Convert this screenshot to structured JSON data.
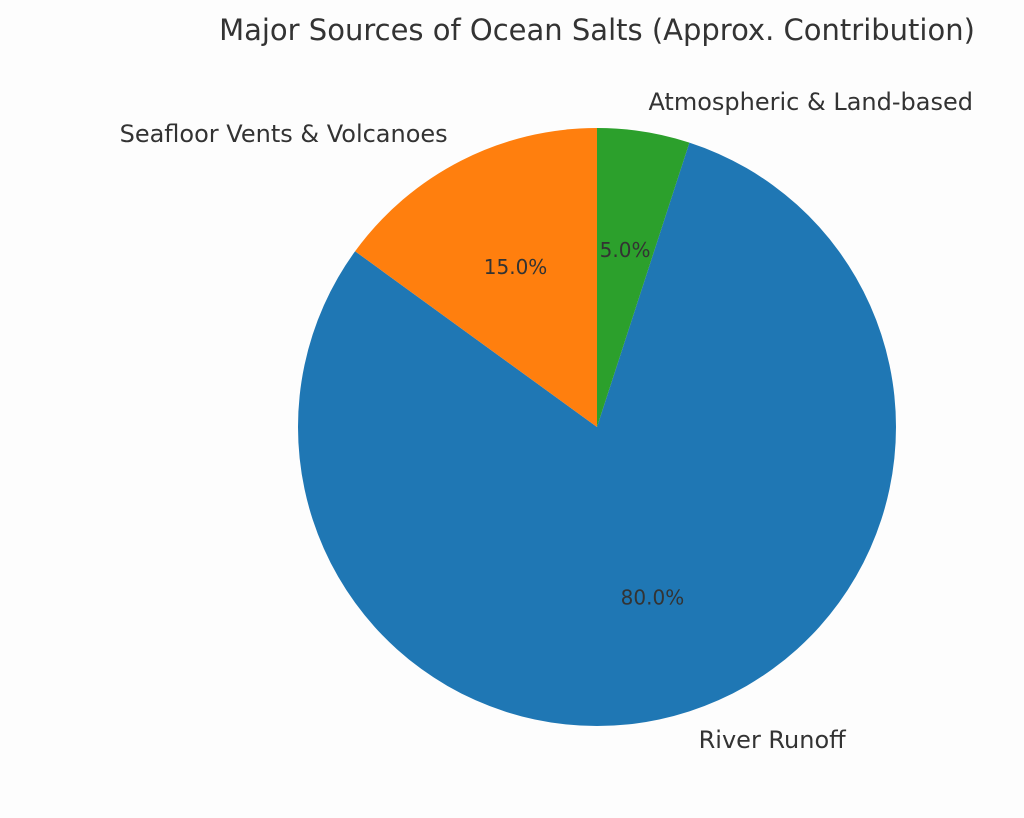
{
  "chart_data": {
    "type": "pie",
    "title": "Major Sources of Ocean Salts (Approx. Contribution)",
    "slices": [
      {
        "label": "River Runoff",
        "value": 80.0,
        "pct_label": "80.0%",
        "color": "#1f77b4"
      },
      {
        "label": "Seafloor Vents & Volcanoes",
        "value": 15.0,
        "pct_label": "15.0%",
        "color": "#ff7f0e"
      },
      {
        "label": "Atmospheric & Land-based",
        "value": 5.0,
        "pct_label": "5.0%",
        "color": "#2ca02c"
      }
    ]
  }
}
